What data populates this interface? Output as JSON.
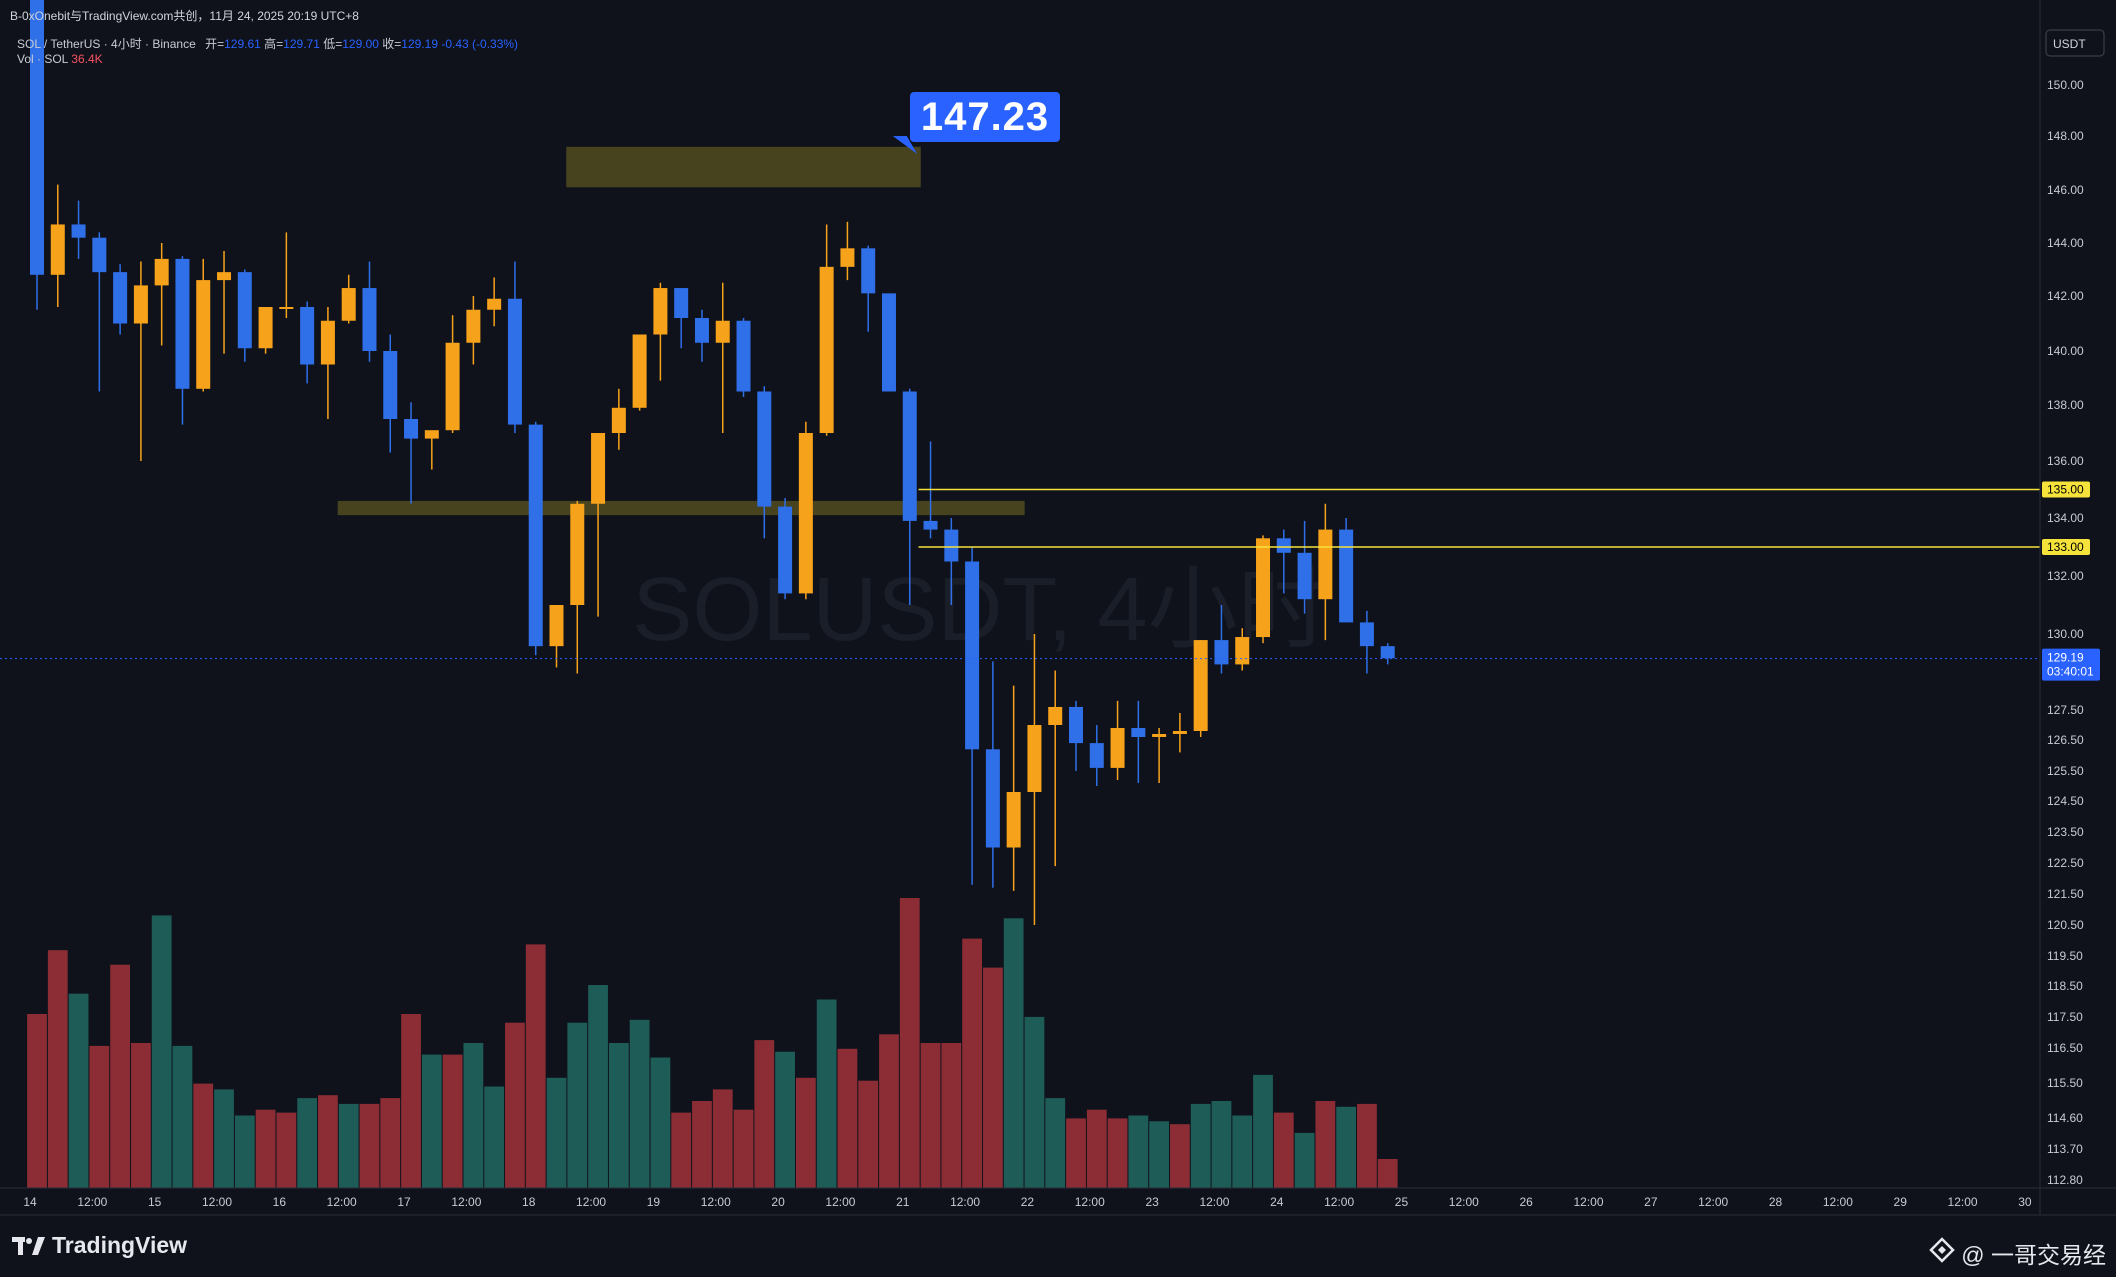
{
  "header": {
    "caption": "B-0xOnebit与TradingView.com共创，11月 24, 2025 20:19 UTC+8",
    "symbol": "SOL / TetherUS · 4小时 · Binance",
    "open_label": "开=",
    "open": "129.61",
    "high_label": "高=",
    "high": "129.71",
    "low_label": "低=",
    "low": "129.00",
    "close_label": "收=",
    "close": "129.19",
    "change": "-0.43 (-0.33%)",
    "vol_label": "Vol · SOL",
    "vol_value": "36.4K"
  },
  "currency_button": "USDT",
  "callout": "147.23",
  "watermark_symbol": "SOLUSDT, 4小时",
  "brand": "TradingView",
  "author": "@ 一哥交易经",
  "colors": {
    "up": "#f7a21b",
    "down": "#2f6fe8",
    "vol_up": "#1e5c58",
    "vol_down": "#8c2d35",
    "bg": "#0f121b",
    "level_line": "#f5e23b",
    "zone": "#5a5420"
  },
  "chart_data": {
    "type": "candlestick",
    "title": "SOL / TetherUS · 4小时 · Binance",
    "ylim": [
      112.4,
      152
    ],
    "y_ticks": [
      "150.00",
      "148.00",
      "146.00",
      "144.00",
      "142.00",
      "140.00",
      "138.00",
      "136.00",
      "134.00",
      "132.00",
      "130.00",
      "127.50",
      "126.50",
      "125.50",
      "124.50",
      "123.50",
      "122.50",
      "121.50",
      "120.50",
      "119.50",
      "118.50",
      "117.50",
      "116.50",
      "115.50",
      "114.60",
      "113.70",
      "112.80"
    ],
    "y_tick_values": [
      150,
      148,
      146,
      144,
      142,
      140,
      138,
      136,
      134,
      132,
      130,
      127.5,
      126.5,
      125.5,
      124.5,
      123.5,
      122.5,
      121.5,
      120.5,
      119.5,
      118.5,
      117.5,
      116.5,
      115.5,
      114.6,
      113.7,
      112.8
    ],
    "x_ticks": [
      "14",
      "12:00",
      "15",
      "12:00",
      "16",
      "12:00",
      "17",
      "12:00",
      "18",
      "12:00",
      "19",
      "12:00",
      "20",
      "12:00",
      "21",
      "12:00",
      "22",
      "12:00",
      "23",
      "12:00",
      "24",
      "12:00",
      "25",
      "12:00",
      "26",
      "12:00",
      "27",
      "12:00",
      "28",
      "12:00",
      "29",
      "12:00",
      "30"
    ],
    "x_tick_index": [
      0,
      3,
      6,
      9,
      12,
      15,
      18,
      21,
      24,
      27,
      30,
      33,
      36,
      39,
      42,
      45,
      48,
      51,
      54,
      57,
      60,
      63,
      66,
      69,
      72,
      75,
      78,
      81,
      84,
      87,
      90,
      93,
      96
    ],
    "candles": [
      {
        "o": 155.0,
        "h": 156.0,
        "l": 141.5,
        "c": 142.8
      },
      {
        "o": 142.8,
        "h": 146.2,
        "l": 141.6,
        "c": 144.7
      },
      {
        "o": 144.7,
        "h": 145.6,
        "l": 143.4,
        "c": 144.2
      },
      {
        "o": 144.2,
        "h": 144.4,
        "l": 138.5,
        "c": 142.9
      },
      {
        "o": 142.9,
        "h": 143.2,
        "l": 140.6,
        "c": 141.0
      },
      {
        "o": 141.0,
        "h": 143.3,
        "l": 136.0,
        "c": 142.4
      },
      {
        "o": 142.4,
        "h": 144.0,
        "l": 140.2,
        "c": 143.4
      },
      {
        "o": 143.4,
        "h": 143.5,
        "l": 137.3,
        "c": 138.6
      },
      {
        "o": 138.6,
        "h": 143.4,
        "l": 138.5,
        "c": 142.6
      },
      {
        "o": 142.6,
        "h": 143.7,
        "l": 139.9,
        "c": 142.9
      },
      {
        "o": 142.9,
        "h": 143.0,
        "l": 139.6,
        "c": 140.1
      },
      {
        "o": 140.1,
        "h": 141.5,
        "l": 139.9,
        "c": 141.6
      },
      {
        "o": 141.6,
        "h": 144.4,
        "l": 141.2,
        "c": 141.6
      },
      {
        "o": 141.6,
        "h": 141.8,
        "l": 138.8,
        "c": 139.5
      },
      {
        "o": 139.5,
        "h": 141.6,
        "l": 137.5,
        "c": 141.1
      },
      {
        "o": 141.1,
        "h": 142.8,
        "l": 141.0,
        "c": 142.3
      },
      {
        "o": 142.3,
        "h": 143.3,
        "l": 139.6,
        "c": 140.0
      },
      {
        "o": 140.0,
        "h": 140.6,
        "l": 136.3,
        "c": 137.5
      },
      {
        "o": 137.5,
        "h": 138.1,
        "l": 134.5,
        "c": 136.8
      },
      {
        "o": 136.8,
        "h": 137.0,
        "l": 135.7,
        "c": 137.1
      },
      {
        "o": 137.1,
        "h": 141.3,
        "l": 137.0,
        "c": 140.3
      },
      {
        "o": 140.3,
        "h": 142.0,
        "l": 139.5,
        "c": 141.5
      },
      {
        "o": 141.5,
        "h": 142.7,
        "l": 140.9,
        "c": 141.9
      },
      {
        "o": 141.9,
        "h": 143.3,
        "l": 137.0,
        "c": 137.3
      },
      {
        "o": 137.3,
        "h": 137.4,
        "l": 129.3,
        "c": 129.6
      },
      {
        "o": 129.6,
        "h": 131.0,
        "l": 128.9,
        "c": 131.0
      },
      {
        "o": 131.0,
        "h": 134.6,
        "l": 128.7,
        "c": 134.5
      },
      {
        "o": 134.5,
        "h": 136.9,
        "l": 130.6,
        "c": 137.0
      },
      {
        "o": 137.0,
        "h": 138.6,
        "l": 136.4,
        "c": 137.9
      },
      {
        "o": 137.9,
        "h": 140.6,
        "l": 137.8,
        "c": 140.6
      },
      {
        "o": 140.6,
        "h": 142.5,
        "l": 138.9,
        "c": 142.3
      },
      {
        "o": 142.3,
        "h": 142.3,
        "l": 140.1,
        "c": 141.2
      },
      {
        "o": 141.2,
        "h": 141.5,
        "l": 139.6,
        "c": 140.3
      },
      {
        "o": 140.3,
        "h": 142.5,
        "l": 137.0,
        "c": 141.1
      },
      {
        "o": 141.1,
        "h": 141.2,
        "l": 138.3,
        "c": 138.5
      },
      {
        "o": 138.5,
        "h": 138.7,
        "l": 133.3,
        "c": 134.4
      },
      {
        "o": 134.4,
        "h": 134.7,
        "l": 131.2,
        "c": 131.4
      },
      {
        "o": 131.4,
        "h": 137.4,
        "l": 131.2,
        "c": 137.0
      },
      {
        "o": 137.0,
        "h": 144.7,
        "l": 136.9,
        "c": 143.1
      },
      {
        "o": 143.1,
        "h": 144.8,
        "l": 142.6,
        "c": 143.8
      },
      {
        "o": 143.8,
        "h": 143.9,
        "l": 140.7,
        "c": 142.1
      },
      {
        "o": 142.1,
        "h": 142.1,
        "l": 138.5,
        "c": 138.5
      },
      {
        "o": 138.5,
        "h": 138.6,
        "l": 131.0,
        "c": 133.9
      },
      {
        "o": 133.9,
        "h": 136.7,
        "l": 133.3,
        "c": 133.6
      },
      {
        "o": 133.6,
        "h": 134.0,
        "l": 131.0,
        "c": 132.5
      },
      {
        "o": 132.5,
        "h": 133.0,
        "l": 121.8,
        "c": 126.2
      },
      {
        "o": 126.2,
        "h": 129.1,
        "l": 121.7,
        "c": 123.0
      },
      {
        "o": 123.0,
        "h": 128.3,
        "l": 121.6,
        "c": 124.8
      },
      {
        "o": 124.8,
        "h": 130.0,
        "l": 120.5,
        "c": 127.0
      },
      {
        "o": 127.0,
        "h": 128.8,
        "l": 122.4,
        "c": 127.6
      },
      {
        "o": 127.6,
        "h": 127.8,
        "l": 125.5,
        "c": 126.4
      },
      {
        "o": 126.4,
        "h": 127.0,
        "l": 125.0,
        "c": 125.6
      },
      {
        "o": 125.6,
        "h": 127.8,
        "l": 125.2,
        "c": 126.9
      },
      {
        "o": 126.9,
        "h": 127.8,
        "l": 125.1,
        "c": 126.6
      },
      {
        "o": 126.6,
        "h": 126.9,
        "l": 125.1,
        "c": 126.7
      },
      {
        "o": 126.7,
        "h": 127.4,
        "l": 126.1,
        "c": 126.8
      },
      {
        "o": 126.8,
        "h": 129.8,
        "l": 126.6,
        "c": 129.8
      },
      {
        "o": 129.8,
        "h": 131.0,
        "l": 128.7,
        "c": 129.0
      },
      {
        "o": 129.0,
        "h": 130.2,
        "l": 128.8,
        "c": 129.9
      },
      {
        "o": 129.9,
        "h": 133.4,
        "l": 129.7,
        "c": 133.3
      },
      {
        "o": 133.3,
        "h": 133.6,
        "l": 131.4,
        "c": 132.8
      },
      {
        "o": 132.8,
        "h": 133.9,
        "l": 130.7,
        "c": 131.2
      },
      {
        "o": 131.2,
        "h": 134.5,
        "l": 129.8,
        "c": 133.6
      },
      {
        "o": 133.6,
        "h": 134.0,
        "l": 130.6,
        "c": 130.4
      },
      {
        "o": 130.4,
        "h": 130.8,
        "l": 128.7,
        "c": 129.6
      },
      {
        "o": 129.6,
        "h": 129.7,
        "l": 129.0,
        "c": 129.2
      }
    ],
    "volume_ratio": [
      0.6,
      0.82,
      0.67,
      0.49,
      0.77,
      0.5,
      0.94,
      0.49,
      0.36,
      0.34,
      0.25,
      0.27,
      0.26,
      0.31,
      0.32,
      0.29,
      0.29,
      0.31,
      0.6,
      0.46,
      0.46,
      0.5,
      0.35,
      0.57,
      0.84,
      0.38,
      0.57,
      0.7,
      0.5,
      0.58,
      0.45,
      0.26,
      0.3,
      0.34,
      0.27,
      0.51,
      0.47,
      0.38,
      0.65,
      0.48,
      0.37,
      0.53,
      1.0,
      0.5,
      0.5,
      0.86,
      0.76,
      0.93,
      0.59,
      0.31,
      0.24,
      0.27,
      0.24,
      0.25,
      0.23,
      0.22,
      0.29,
      0.3,
      0.25,
      0.39,
      0.26,
      0.19,
      0.3,
      0.28,
      0.29,
      0.1
    ],
    "volume_dir": [
      "down",
      "down",
      "up",
      "down",
      "down",
      "down",
      "up",
      "up",
      "down",
      "up",
      "up",
      "down",
      "down",
      "up",
      "down",
      "up",
      "down",
      "down",
      "down",
      "up",
      "down",
      "up",
      "up",
      "down",
      "down",
      "up",
      "up",
      "up",
      "up",
      "up",
      "up",
      "down",
      "down",
      "down",
      "down",
      "down",
      "up",
      "down",
      "up",
      "down",
      "down",
      "down",
      "down",
      "down",
      "down",
      "down",
      "down",
      "up",
      "up",
      "up",
      "down",
      "down",
      "down",
      "up",
      "up",
      "down",
      "up",
      "up",
      "up",
      "up",
      "down",
      "up",
      "down",
      "up",
      "down",
      "down"
    ],
    "levels": [
      {
        "price": 135.0,
        "label": "135.00"
      },
      {
        "price": 133.0,
        "label": "133.00"
      }
    ],
    "zones": [
      {
        "top": 147.6,
        "bottom": 146.1,
        "from_index": 26,
        "to_index": 42
      },
      {
        "top": 134.6,
        "bottom": 134.1,
        "from_index": 15,
        "to_index": 47
      }
    ],
    "current_price": {
      "price": 129.19,
      "label": "129.19",
      "countdown": "03:40:01"
    }
  }
}
